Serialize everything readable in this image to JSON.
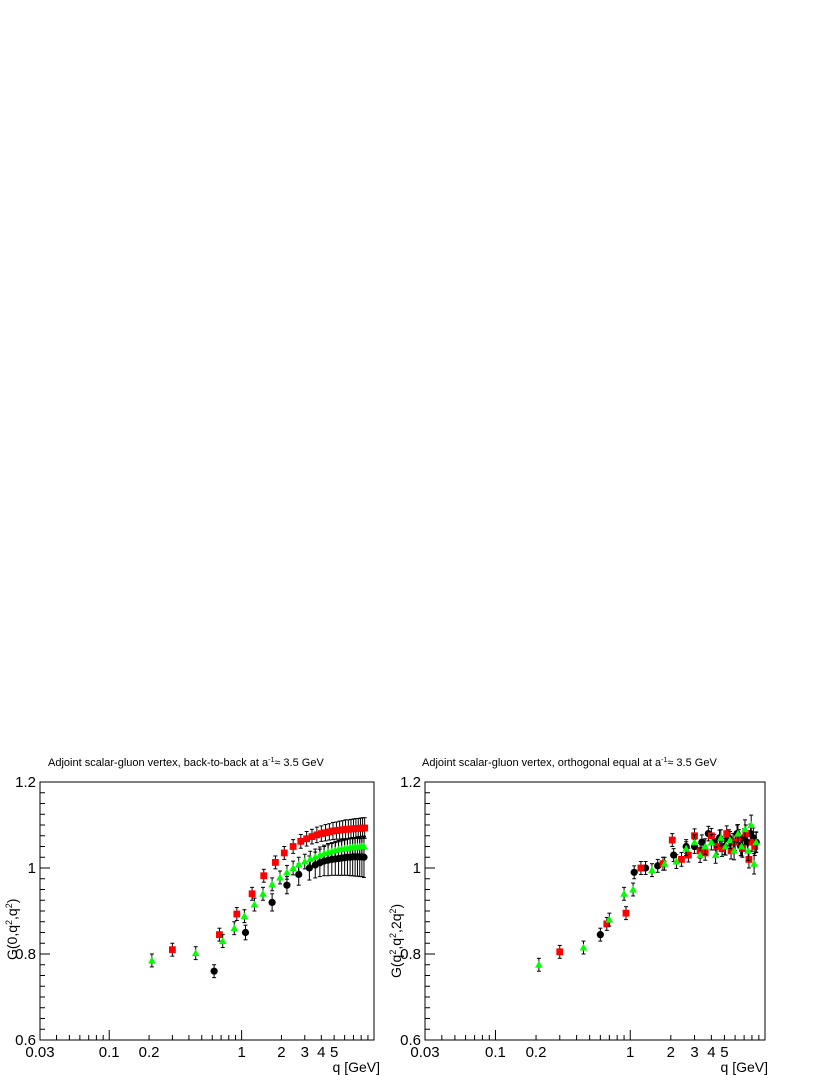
{
  "chart_data": [
    {
      "type": "scatter",
      "title": "Adjoint scalar-gluon vertex, back-to-back at a",
      "title_sup": "-1",
      "title_tail": "≈ 3.5 GeV",
      "xlabel": "q [GeV]",
      "ylabel": "G(0,q",
      "ylabel_sup1": "2",
      "ylabel_mid": ",q",
      "ylabel_sup2": "2",
      "ylabel_end": ")",
      "x_scale": "log",
      "xlim": [
        0.03,
        10
      ],
      "ylim": [
        0.6,
        1.2
      ],
      "x_tick_labels": [
        {
          "value": 0.03,
          "label": "0.03"
        },
        {
          "value": 0.1,
          "label": "0.1"
        },
        {
          "value": 0.2,
          "label": "0.2"
        },
        {
          "value": 1,
          "label": "1"
        },
        {
          "value": 2,
          "label": "2"
        },
        {
          "value": 3,
          "label": "3"
        },
        {
          "value": 4,
          "label": "4"
        },
        {
          "value": 5,
          "label": "5"
        }
      ],
      "y_tick_labels": [
        {
          "value": 0.6,
          "label": "0.6"
        },
        {
          "value": 0.8,
          "label": "0.8"
        },
        {
          "value": 1,
          "label": "1"
        },
        {
          "value": 1.2,
          "label": "1.2"
        }
      ],
      "grid": false,
      "series": [
        {
          "marker": "circle",
          "color": "#000000",
          "points": [
            [
              0.62,
              0.76,
              0.015
            ],
            [
              1.07,
              0.85,
              0.017
            ],
            [
              1.7,
              0.92,
              0.02
            ],
            [
              2.2,
              0.96,
              0.02
            ],
            [
              2.7,
              0.985,
              0.025
            ],
            [
              3.25,
              1.0,
              0.028
            ],
            [
              3.6,
              1.007,
              0.03
            ],
            [
              3.9,
              1.012,
              0.032
            ],
            [
              4.2,
              1.016,
              0.034
            ],
            [
              4.5,
              1.018,
              0.036
            ],
            [
              4.8,
              1.02,
              0.037
            ],
            [
              5.1,
              1.021,
              0.038
            ],
            [
              5.4,
              1.022,
              0.039
            ],
            [
              5.7,
              1.023,
              0.04
            ],
            [
              6.0,
              1.024,
              0.041
            ],
            [
              6.3,
              1.025,
              0.042
            ],
            [
              6.6,
              1.025,
              0.043
            ],
            [
              6.9,
              1.026,
              0.044
            ],
            [
              7.2,
              1.026,
              0.045
            ],
            [
              7.5,
              1.026,
              0.045
            ],
            [
              7.8,
              1.026,
              0.046
            ],
            [
              8.1,
              1.026,
              0.046
            ],
            [
              8.4,
              1.025,
              0.047
            ]
          ]
        },
        {
          "marker": "square",
          "color": "#ff0000",
          "points": [
            [
              0.3,
              0.81,
              0.015
            ],
            [
              0.68,
              0.845,
              0.015
            ],
            [
              0.92,
              0.893,
              0.015
            ],
            [
              1.2,
              0.94,
              0.015
            ],
            [
              1.47,
              0.982,
              0.015
            ],
            [
              1.8,
              1.013,
              0.015
            ],
            [
              2.1,
              1.035,
              0.015
            ],
            [
              2.45,
              1.05,
              0.016
            ],
            [
              2.8,
              1.062,
              0.016
            ],
            [
              3.1,
              1.068,
              0.017
            ],
            [
              3.4,
              1.073,
              0.017
            ],
            [
              3.7,
              1.077,
              0.018
            ],
            [
              4.0,
              1.08,
              0.018
            ],
            [
              4.3,
              1.082,
              0.019
            ],
            [
              4.6,
              1.084,
              0.019
            ],
            [
              4.9,
              1.086,
              0.02
            ],
            [
              5.2,
              1.087,
              0.02
            ],
            [
              5.5,
              1.088,
              0.021
            ],
            [
              5.8,
              1.089,
              0.021
            ],
            [
              6.1,
              1.09,
              0.022
            ],
            [
              6.4,
              1.09,
              0.022
            ],
            [
              6.7,
              1.091,
              0.022
            ],
            [
              7.0,
              1.091,
              0.023
            ],
            [
              7.3,
              1.092,
              0.023
            ],
            [
              7.6,
              1.092,
              0.023
            ],
            [
              7.9,
              1.092,
              0.024
            ],
            [
              8.2,
              1.093,
              0.024
            ],
            [
              8.5,
              1.093,
              0.024
            ]
          ]
        },
        {
          "marker": "triangle",
          "color": "#00ff00",
          "points": [
            [
              0.21,
              0.785,
              0.015
            ],
            [
              0.45,
              0.802,
              0.015
            ],
            [
              0.72,
              0.83,
              0.015
            ],
            [
              0.88,
              0.86,
              0.015
            ],
            [
              1.05,
              0.888,
              0.015
            ],
            [
              1.25,
              0.915,
              0.015
            ],
            [
              1.45,
              0.94,
              0.015
            ],
            [
              1.7,
              0.962,
              0.015
            ],
            [
              1.95,
              0.978,
              0.015
            ],
            [
              2.2,
              0.99,
              0.016
            ],
            [
              2.45,
              1.0,
              0.016
            ],
            [
              2.7,
              1.008,
              0.017
            ],
            [
              3.0,
              1.015,
              0.017
            ],
            [
              3.3,
              1.021,
              0.018
            ],
            [
              3.6,
              1.026,
              0.018
            ],
            [
              3.9,
              1.03,
              0.019
            ],
            [
              4.2,
              1.034,
              0.019
            ],
            [
              4.5,
              1.037,
              0.02
            ],
            [
              4.8,
              1.039,
              0.02
            ],
            [
              5.1,
              1.041,
              0.021
            ],
            [
              5.4,
              1.043,
              0.021
            ],
            [
              5.7,
              1.044,
              0.022
            ],
            [
              6.0,
              1.045,
              0.022
            ],
            [
              6.3,
              1.046,
              0.022
            ],
            [
              6.6,
              1.047,
              0.023
            ],
            [
              6.9,
              1.048,
              0.023
            ],
            [
              7.2,
              1.048,
              0.023
            ],
            [
              7.5,
              1.049,
              0.024
            ],
            [
              7.8,
              1.049,
              0.024
            ],
            [
              8.1,
              1.05,
              0.024
            ],
            [
              8.4,
              1.05,
              0.024
            ]
          ]
        }
      ]
    },
    {
      "type": "scatter",
      "title": "Adjoint scalar-gluon vertex, orthogonal equal at a",
      "title_sup": "-1",
      "title_tail": "≈ 3.5 GeV",
      "xlabel": "q [GeV]",
      "ylabel": "G(q",
      "ylabel_sup1": "2",
      "ylabel_mid": ",q",
      "ylabel_sup2": "2",
      "ylabel_end": ",2q",
      "ylabel_sup3": "2",
      "ylabel_close": ")",
      "x_scale": "log",
      "xlim": [
        0.03,
        10
      ],
      "ylim": [
        0.6,
        1.2
      ],
      "x_tick_labels": [
        {
          "value": 0.03,
          "label": "0.03"
        },
        {
          "value": 0.1,
          "label": "0.1"
        },
        {
          "value": 0.2,
          "label": "0.2"
        },
        {
          "value": 1,
          "label": "1"
        },
        {
          "value": 2,
          "label": "2"
        },
        {
          "value": 3,
          "label": "3"
        },
        {
          "value": 4,
          "label": "4"
        },
        {
          "value": 5,
          "label": "5"
        }
      ],
      "y_tick_labels": [
        {
          "value": 0.6,
          "label": "0.6"
        },
        {
          "value": 0.8,
          "label": "0.8"
        },
        {
          "value": 1,
          "label": "1"
        },
        {
          "value": 1.2,
          "label": "1.2"
        }
      ],
      "grid": false,
      "series": [
        {
          "marker": "circle",
          "color": "#000000",
          "points": [
            [
              0.6,
              0.845,
              0.015
            ],
            [
              1.07,
              0.99,
              0.015
            ],
            [
              1.3,
              1.0,
              0.015
            ],
            [
              1.6,
              1.005,
              0.015
            ],
            [
              2.1,
              1.03,
              0.015
            ],
            [
              2.6,
              1.05,
              0.016
            ],
            [
              3.0,
              1.05,
              0.016
            ],
            [
              3.4,
              1.06,
              0.017
            ],
            [
              3.8,
              1.08,
              0.017
            ],
            [
              4.2,
              1.06,
              0.018
            ],
            [
              4.6,
              1.07,
              0.018
            ],
            [
              5.0,
              1.05,
              0.019
            ],
            [
              5.4,
              1.07,
              0.019
            ],
            [
              5.8,
              1.06,
              0.02
            ],
            [
              6.2,
              1.08,
              0.02
            ],
            [
              6.6,
              1.05,
              0.021
            ],
            [
              7.0,
              1.07,
              0.021
            ],
            [
              7.4,
              1.06,
              0.022
            ],
            [
              7.8,
              1.08,
              0.022
            ],
            [
              8.2,
              1.07,
              0.023
            ],
            [
              8.6,
              1.06,
              0.023
            ]
          ]
        },
        {
          "marker": "square",
          "color": "#ff0000",
          "points": [
            [
              0.3,
              0.805,
              0.015
            ],
            [
              0.67,
              0.87,
              0.015
            ],
            [
              0.93,
              0.895,
              0.015
            ],
            [
              1.2,
              1.0,
              0.015
            ],
            [
              1.75,
              1.01,
              0.015
            ],
            [
              2.05,
              1.065,
              0.015
            ],
            [
              2.4,
              1.02,
              0.016
            ],
            [
              2.7,
              1.03,
              0.016
            ],
            [
              3.0,
              1.075,
              0.016
            ],
            [
              3.3,
              1.04,
              0.017
            ],
            [
              3.6,
              1.035,
              0.017
            ],
            [
              4.0,
              1.075,
              0.017
            ],
            [
              4.4,
              1.05,
              0.018
            ],
            [
              4.8,
              1.045,
              0.018
            ],
            [
              5.2,
              1.08,
              0.018
            ],
            [
              5.6,
              1.04,
              0.019
            ],
            [
              6.0,
              1.06,
              0.019
            ],
            [
              6.4,
              1.07,
              0.019
            ],
            [
              6.8,
              1.045,
              0.02
            ],
            [
              7.2,
              1.08,
              0.02
            ],
            [
              7.6,
              1.02,
              0.02
            ],
            [
              8.0,
              1.06,
              0.021
            ],
            [
              8.4,
              1.05,
              0.021
            ]
          ]
        },
        {
          "marker": "triangle",
          "color": "#00ff00",
          "points": [
            [
              0.21,
              0.775,
              0.015
            ],
            [
              0.45,
              0.815,
              0.015
            ],
            [
              0.7,
              0.88,
              0.015
            ],
            [
              0.9,
              0.94,
              0.015
            ],
            [
              1.05,
              0.95,
              0.015
            ],
            [
              1.45,
              0.995,
              0.015
            ],
            [
              1.8,
              1.01,
              0.015
            ],
            [
              2.2,
              1.015,
              0.016
            ],
            [
              2.6,
              1.045,
              0.016
            ],
            [
              3.0,
              1.06,
              0.017
            ],
            [
              3.3,
              1.03,
              0.017
            ],
            [
              3.6,
              1.05,
              0.018
            ],
            [
              4.0,
              1.06,
              0.018
            ],
            [
              4.3,
              1.03,
              0.019
            ],
            [
              4.7,
              1.07,
              0.019
            ],
            [
              5.1,
              1.05,
              0.02
            ],
            [
              5.5,
              1.065,
              0.02
            ],
            [
              5.9,
              1.04,
              0.021
            ],
            [
              6.3,
              1.08,
              0.021
            ],
            [
              6.7,
              1.05,
              0.022
            ],
            [
              7.1,
              1.09,
              0.022
            ],
            [
              7.5,
              1.04,
              0.023
            ],
            [
              7.9,
              1.1,
              0.023
            ],
            [
              8.3,
              1.01,
              0.024
            ],
            [
              8.6,
              1.06,
              0.024
            ]
          ]
        }
      ]
    }
  ]
}
